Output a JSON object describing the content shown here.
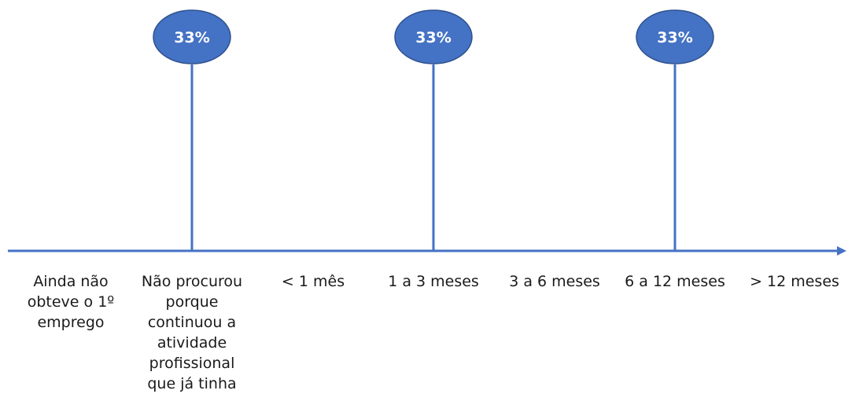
{
  "chart_data": {
    "type": "bar",
    "style": "lollipop",
    "categories": [
      "Ainda não\nobteve o 1º\nemprego",
      "Não procurou\nporque\ncontinuou a\natividade\nprofissional\nque já tinha",
      "< 1  mês",
      "1  a  3 meses",
      "3  a  6 meses",
      "6  a 12 meses",
      "> 12 meses"
    ],
    "values": [
      0,
      33,
      0,
      33,
      0,
      33,
      0
    ],
    "data_labels": [
      "",
      "33%",
      "",
      "33%",
      "",
      "33%",
      ""
    ],
    "unit": "%",
    "ylim": [
      0,
      33
    ],
    "title": "",
    "xlabel": "",
    "ylabel": "",
    "grid": false,
    "legend": "none"
  },
  "colors": {
    "axis": "#4472c4",
    "stem": "#4472c4",
    "bubble_fill": "#4472c4",
    "bubble_stroke": "#2f528f",
    "bubble_text": "#ffffff",
    "label_text": "#1a1a1a"
  }
}
